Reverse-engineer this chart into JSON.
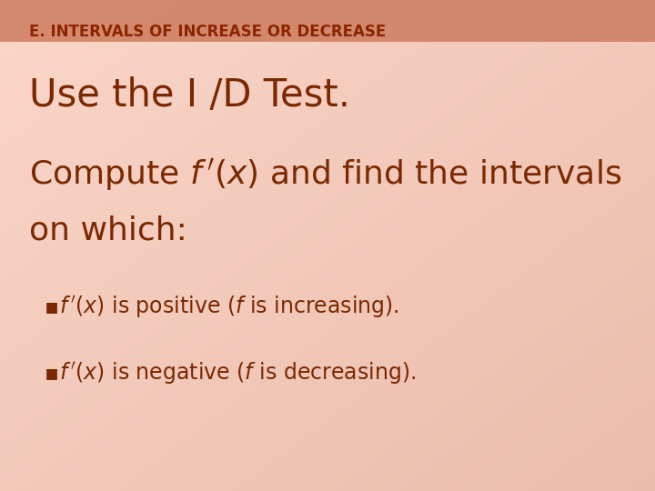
{
  "title_text": "E. INTERVALS OF INCREASE OR DECREASE",
  "title_color": "#8B2500",
  "header_bar_color": "#C87050",
  "header_bar_alpha": 0.75,
  "bg_color_left": "#F8D8C0",
  "bg_color_right": "#F0C0A0",
  "main_text_color": "#7B2800",
  "line1": "Use the I /D Test.",
  "line1_fontsize": 30,
  "line23_fontsize": 26,
  "bullet_fontsize": 17,
  "title_fontsize": 12,
  "fig_width": 7.2,
  "fig_height": 5.4,
  "dpi": 100
}
